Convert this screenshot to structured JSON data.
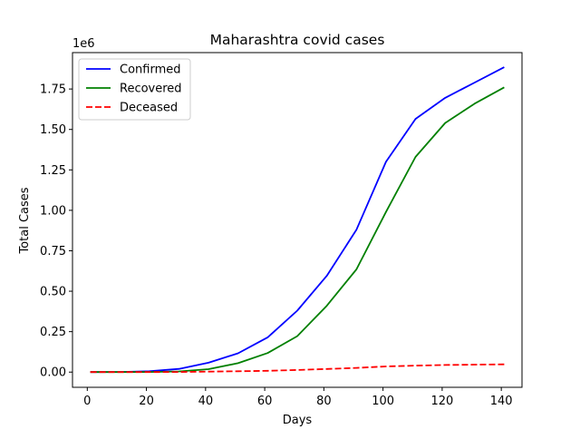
{
  "chart_data": {
    "type": "line",
    "title": "Maharashtra covid cases",
    "xlabel": "Days",
    "ylabel": "Total Cases",
    "y_offset_label": "1e6",
    "xlim": [
      -5,
      147
    ],
    "ylim": [
      -0.094,
      1.975
    ],
    "y_scale": 1000000,
    "x_ticks": [
      0,
      20,
      40,
      60,
      80,
      100,
      120,
      140
    ],
    "x_tick_labels": [
      "0",
      "20",
      "40",
      "60",
      "80",
      "100",
      "120",
      "140"
    ],
    "y_ticks": [
      0,
      0.25,
      0.5,
      0.75,
      1.0,
      1.25,
      1.5,
      1.75
    ],
    "y_tick_labels": [
      "0.00",
      "0.25",
      "0.50",
      "0.75",
      "1.00",
      "1.25",
      "1.50",
      "1.75"
    ],
    "grid": false,
    "legend_position": "top-left",
    "x": [
      1,
      11,
      21,
      31,
      41,
      51,
      61,
      71,
      81,
      91,
      101,
      111,
      121,
      131,
      141
    ],
    "series": [
      {
        "name": "Confirmed",
        "color": "#0000ff",
        "style": "solid",
        "values": [
          0.0,
          0.001,
          0.005,
          0.02,
          0.058,
          0.116,
          0.215,
          0.38,
          0.595,
          0.88,
          1.3,
          1.565,
          1.695,
          1.79,
          1.885
        ]
      },
      {
        "name": "Recovered",
        "color": "#008000",
        "style": "solid",
        "values": [
          0.0,
          0.0002,
          0.001,
          0.004,
          0.018,
          0.055,
          0.118,
          0.222,
          0.41,
          0.635,
          0.99,
          1.33,
          1.54,
          1.66,
          1.76
        ]
      },
      {
        "name": "Deceased",
        "color": "#ff0000",
        "style": "dashed",
        "values": [
          0.0,
          0.0,
          0.0002,
          0.001,
          0.003,
          0.005,
          0.008,
          0.013,
          0.019,
          0.026,
          0.035,
          0.04,
          0.044,
          0.046,
          0.048
        ]
      }
    ]
  }
}
